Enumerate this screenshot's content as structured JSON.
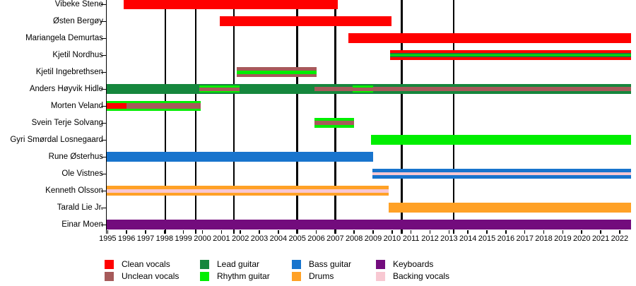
{
  "chart_data": {
    "type": "bar",
    "subtype": "band-member-timeline-gantt",
    "title": "",
    "grid": "vertical-release-lines",
    "legend_position": "bottom",
    "axis": {
      "start": 1994.95,
      "end": 2022.6,
      "tick_years": [
        "1995",
        "1996",
        "1997",
        "1998",
        "1999",
        "2000",
        "2001",
        "2002",
        "2003",
        "2004",
        "2005",
        "2006",
        "2007",
        "2008",
        "2009",
        "2010",
        "2011",
        "2012",
        "2013",
        "2014",
        "2015",
        "2016",
        "2017",
        "2018",
        "2019",
        "2020",
        "2021",
        "2022"
      ]
    },
    "release_lines": [
      1998.05,
      1999.65,
      2001.65,
      2005.0,
      2007.0,
      2010.5,
      2013.25
    ],
    "roles": {
      "clean": {
        "label": "Clean vocals",
        "color": "#ff0000"
      },
      "unclean": {
        "label": "Unclean vocals",
        "color": "#a65a5a"
      },
      "lead": {
        "label": "Lead guitar",
        "color": "#15873d"
      },
      "rhythm": {
        "label": "Rhythm guitar",
        "color": "#00ee00"
      },
      "bass": {
        "label": "Bass guitar",
        "color": "#1874cd"
      },
      "drums": {
        "label": "Drums",
        "color": "#ffa126"
      },
      "keys": {
        "label": "Keyboards",
        "color": "#730c7d"
      },
      "backing": {
        "label": "Backing vocals",
        "color": "#f8c8d2"
      }
    },
    "legend_order": [
      [
        "clean",
        "unclean"
      ],
      [
        "lead",
        "rhythm"
      ],
      [
        "bass",
        "drums"
      ],
      [
        "keys",
        "backing"
      ]
    ],
    "members": [
      {
        "name": "Vibeke Stene",
        "segments": [
          {
            "start": 1995.85,
            "end": 2007.15,
            "stripes": [
              {
                "role": "clean",
                "w": 1
              }
            ]
          }
        ]
      },
      {
        "name": "Østen Bergøy",
        "segments": [
          {
            "start": 2000.9,
            "end": 2009.95,
            "stripes": [
              {
                "role": "clean",
                "w": 1
              }
            ]
          }
        ]
      },
      {
        "name": "Mariangela Demurtas",
        "segments": [
          {
            "start": 2007.7,
            "end": 2022.6,
            "stripes": [
              {
                "role": "clean",
                "w": 1
              }
            ]
          }
        ]
      },
      {
        "name": "Kjetil Nordhus",
        "segments": [
          {
            "start": 2009.9,
            "end": 2022.6,
            "stripes": [
              {
                "role": "clean",
                "w": 4
              },
              {
                "role": "lead",
                "w": 2
              },
              {
                "role": "rhythm",
                "w": 3
              },
              {
                "role": "lead",
                "w": 2
              },
              {
                "role": "clean",
                "w": 4
              }
            ]
          }
        ]
      },
      {
        "name": "Kjetil Ingebrethsen",
        "segments": [
          {
            "start": 2001.8,
            "end": 2006.0,
            "stripes": [
              {
                "role": "unclean",
                "w": 4.5
              },
              {
                "role": "rhythm",
                "w": 5
              },
              {
                "role": "unclean",
                "w": 4.5
              }
            ]
          }
        ]
      },
      {
        "name": "Anders Høyvik Hidle",
        "segments": [
          {
            "start": 1994.95,
            "end": 2022.6,
            "stripes": [
              {
                "role": "lead",
                "w": 1
              }
            ]
          },
          {
            "start": 1999.85,
            "end": 2001.95,
            "stripes": [
              {
                "role": "lead",
                "w": 2
              },
              {
                "role": "rhythm",
                "w": 2.5
              },
              {
                "role": "unclean",
                "w": 5
              },
              {
                "role": "rhythm",
                "w": 2.5
              },
              {
                "role": "lead",
                "w": 2
              }
            ]
          },
          {
            "start": 2005.9,
            "end": 2007.9,
            "stripes": [
              {
                "role": "lead",
                "w": 4
              },
              {
                "role": "unclean",
                "w": 6
              },
              {
                "role": "lead",
                "w": 4
              }
            ]
          },
          {
            "start": 2007.9,
            "end": 2009.0,
            "stripes": [
              {
                "role": "lead",
                "w": 2
              },
              {
                "role": "rhythm",
                "w": 2.5
              },
              {
                "role": "unclean",
                "w": 5
              },
              {
                "role": "rhythm",
                "w": 2.5
              },
              {
                "role": "lead",
                "w": 2
              }
            ]
          },
          {
            "start": 2009.0,
            "end": 2022.6,
            "stripes": [
              {
                "role": "lead",
                "w": 4
              },
              {
                "role": "unclean",
                "w": 6
              },
              {
                "role": "lead",
                "w": 4
              }
            ]
          }
        ]
      },
      {
        "name": "Morten Veland",
        "segments": [
          {
            "start": 1994.95,
            "end": 1996.0,
            "stripes": [
              {
                "role": "rhythm",
                "w": 3
              },
              {
                "role": "clean",
                "w": 8
              },
              {
                "role": "rhythm",
                "w": 3
              }
            ]
          },
          {
            "start": 1996.0,
            "end": 1999.9,
            "stripes": [
              {
                "role": "rhythm",
                "w": 3
              },
              {
                "role": "unclean",
                "w": 8
              },
              {
                "role": "rhythm",
                "w": 3
              }
            ]
          }
        ]
      },
      {
        "name": "Svein Terje Solvang",
        "segments": [
          {
            "start": 2005.9,
            "end": 2008.0,
            "stripes": [
              {
                "role": "rhythm",
                "w": 4
              },
              {
                "role": "unclean",
                "w": 6
              },
              {
                "role": "rhythm",
                "w": 4
              }
            ]
          }
        ]
      },
      {
        "name": "Gyri Smørdal Losnegaard",
        "segments": [
          {
            "start": 2008.9,
            "end": 2022.6,
            "stripes": [
              {
                "role": "rhythm",
                "w": 1
              }
            ]
          }
        ]
      },
      {
        "name": "Rune Østerhus",
        "segments": [
          {
            "start": 1994.95,
            "end": 2009.0,
            "stripes": [
              {
                "role": "bass",
                "w": 1
              }
            ]
          }
        ]
      },
      {
        "name": "Ole Vistnes",
        "segments": [
          {
            "start": 2008.95,
            "end": 2022.6,
            "stripes": [
              {
                "role": "bass",
                "w": 5
              },
              {
                "role": "backing",
                "w": 4
              },
              {
                "role": "bass",
                "w": 5
              }
            ]
          }
        ]
      },
      {
        "name": "Kenneth Olsson",
        "segments": [
          {
            "start": 1994.95,
            "end": 2009.8,
            "stripes": [
              {
                "role": "drums",
                "w": 4.5
              },
              {
                "role": "backing",
                "w": 5
              },
              {
                "role": "drums",
                "w": 4.5
              }
            ]
          }
        ]
      },
      {
        "name": "Tarald Lie Jr.",
        "segments": [
          {
            "start": 2009.8,
            "end": 2022.6,
            "stripes": [
              {
                "role": "drums",
                "w": 1
              }
            ]
          }
        ]
      },
      {
        "name": "Einar Moen",
        "segments": [
          {
            "start": 1994.95,
            "end": 2022.6,
            "stripes": [
              {
                "role": "keys",
                "w": 1
              }
            ]
          }
        ]
      }
    ]
  }
}
